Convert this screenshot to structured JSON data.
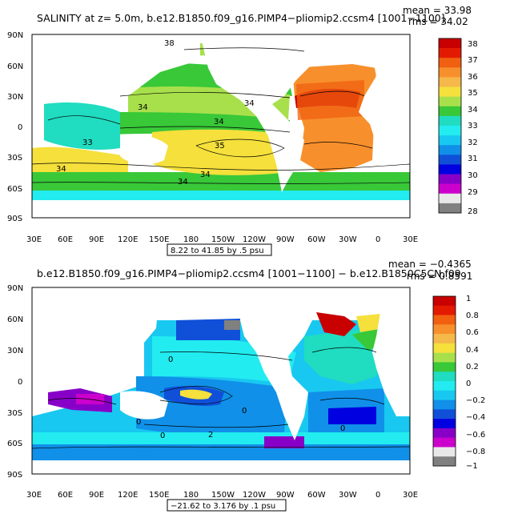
{
  "panels": [
    {
      "id": "top",
      "title": "SALINITY at z=    5.0m, b.e12.B1850.f09_g16.PIMP4−pliomip2.ccsm4 [1001−1100]",
      "mean": "mean = 33.98",
      "rms": "rms = 34.02",
      "range_label": "8.22 to 41.85 by .5 psu",
      "lat_ticks": [
        "90N",
        "60N",
        "30N",
        "0",
        "30S",
        "60S",
        "90S"
      ],
      "lon_ticks": [
        "30E",
        "60E",
        "90E",
        "120E",
        "150E",
        "180",
        "150W",
        "120W",
        "90W",
        "60W",
        "30W",
        "0",
        "30E"
      ],
      "contour_labels": [
        "34",
        "34",
        "34",
        "34",
        "33",
        "35",
        "34",
        "34",
        "38"
      ],
      "colorbar": {
        "labels": [
          "38",
          "37",
          "36",
          "35",
          "34",
          "33",
          "32",
          "31",
          "30",
          "29",
          "28"
        ],
        "colors": [
          "#c80000",
          "#e41a00",
          "#f06010",
          "#f7902c",
          "#f5b84a",
          "#f5e03c",
          "#a8e04c",
          "#38c838",
          "#20dcc0",
          "#22ecf0",
          "#18c8f0",
          "#1090e8",
          "#1050d8",
          "#0000e0",
          "#8800c8",
          "#cc00cc",
          "#e8e8e8",
          "#808080"
        ]
      }
    },
    {
      "id": "bottom",
      "title": "b.e12.B1850.f09_g16.PIMP4−pliomip2.ccsm4 [1001−1100] − b.e12.B1850C5CN.f09",
      "mean": "mean = −0.4365",
      "rms": "rms = 0.8591",
      "range_label": "−21.62 to 3.176 by .1 psu",
      "lat_ticks": [
        "90N",
        "60N",
        "30N",
        "0",
        "30S",
        "60S",
        "90S"
      ],
      "lon_ticks": [
        "30E",
        "60E",
        "90E",
        "120E",
        "150E",
        "180",
        "150W",
        "120W",
        "90W",
        "60W",
        "30W",
        "0",
        "30E"
      ],
      "contour_labels": [
        "0",
        "0",
        "0",
        "0",
        "2",
        "0"
      ],
      "colorbar": {
        "labels": [
          "1",
          "0.8",
          "0.6",
          "0.4",
          "0.2",
          "0",
          "−0.2",
          "−0.4",
          "−0.6",
          "−0.8",
          "−1"
        ],
        "colors": [
          "#c80000",
          "#e41a00",
          "#f06010",
          "#f7902c",
          "#f5b84a",
          "#f5e03c",
          "#a8e04c",
          "#38c838",
          "#20dcc0",
          "#22ecf0",
          "#18c8f0",
          "#1090e8",
          "#1050d8",
          "#0000e0",
          "#8800c8",
          "#cc00cc",
          "#e8e8e8",
          "#808080"
        ]
      }
    }
  ]
}
